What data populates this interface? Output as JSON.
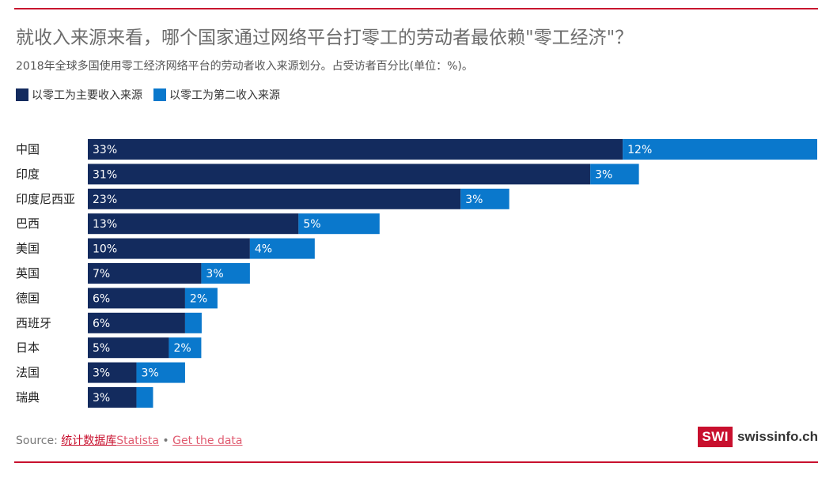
{
  "header": {
    "title": "就收入来源来看，哪个国家通过网络平台打零工的劳动者最依赖\"零工经济\"？",
    "subtitle": "2018年全球多国使用零工经济网络平台的劳动者收入来源划分。占受访者百分比(单位：%)。"
  },
  "legend": {
    "primary": "以零工为主要收入来源",
    "secondary": "以零工为第二收入来源"
  },
  "colors": {
    "primary": "#132b5e",
    "secondary": "#0a78cc",
    "accent": "#c8102e"
  },
  "chart_data": {
    "type": "bar",
    "orientation": "horizontal",
    "stacked": true,
    "categories": [
      "中国",
      "印度",
      "印度尼西亚",
      "巴西",
      "美国",
      "英国",
      "德国",
      "西班牙",
      "日本",
      "法国",
      "瑞典"
    ],
    "series": [
      {
        "name": "以零工为主要收入来源",
        "values": [
          33,
          31,
          23,
          13,
          10,
          7,
          6,
          6,
          5,
          3,
          3
        ]
      },
      {
        "name": "以零工为第二收入来源",
        "values": [
          12,
          3,
          3,
          5,
          4,
          3,
          2,
          null,
          2,
          3,
          null
        ]
      }
    ],
    "xmax": 45,
    "grid": false,
    "legend_position": "top-left"
  },
  "footer": {
    "source_prefix": "Source:",
    "source_link_cn": "统计数据库",
    "source_link_en": "Statista",
    "separator": "•",
    "get_data": "Get the data"
  },
  "brand": {
    "logo": "SWI",
    "site": "swissinfo.ch"
  }
}
